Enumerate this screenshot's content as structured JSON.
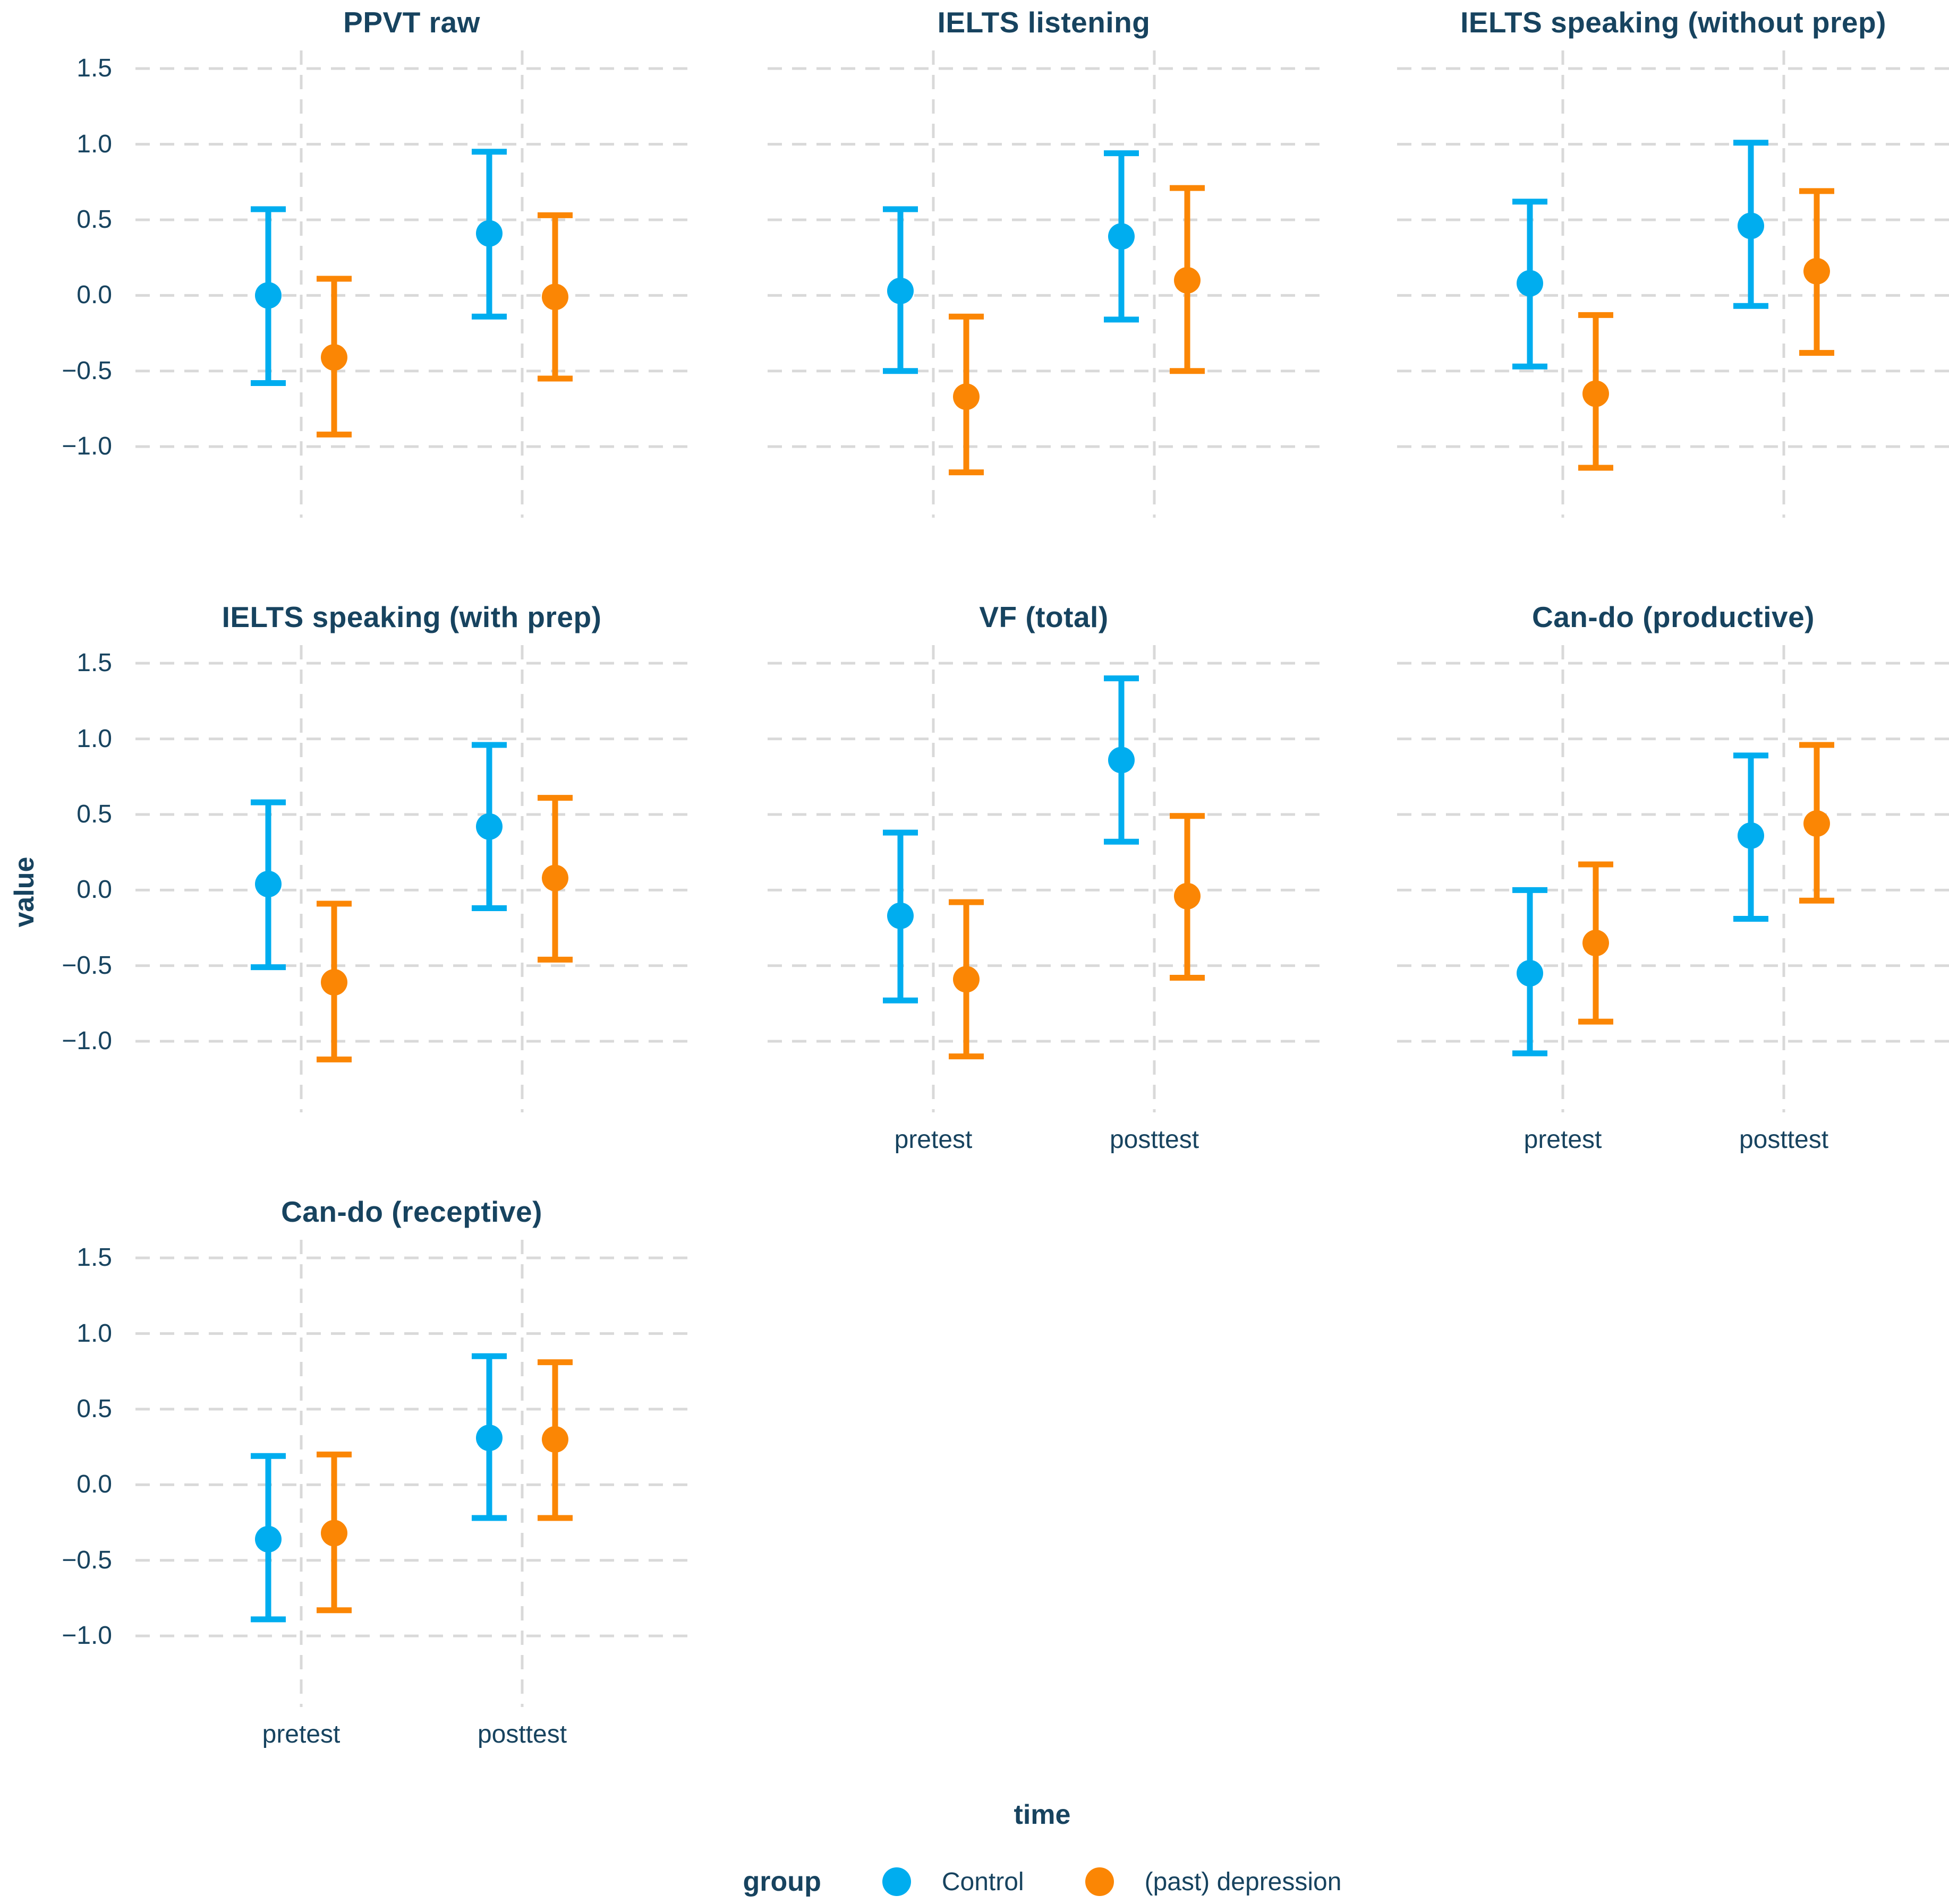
{
  "chart_data": {
    "type": "pointrange",
    "xlabel": "time",
    "ylabel": "value",
    "x_categories": [
      "pretest",
      "posttest"
    ],
    "y_ticks": [
      1.5,
      1.0,
      0.5,
      0.0,
      -0.5,
      -1.0
    ],
    "y_tick_labels": [
      "1.5",
      "1.0",
      "0.5",
      "0.0",
      "−0.5",
      "−1.0"
    ],
    "ylim": [
      -1.47,
      1.62
    ],
    "grid": "dashed-horizontal-and-vertical",
    "background": "#ffffff",
    "text_color": "#17435f",
    "gridline_color": "#d9d9d9",
    "legend": {
      "title": "group",
      "position": "bottom",
      "items": [
        {
          "label": "Control",
          "color": "#00ADEF"
        },
        {
          "label": "(past) depression",
          "color": "#FB8604"
        }
      ]
    },
    "facets": [
      {
        "title": "PPVT raw",
        "row": 1,
        "col": 1,
        "show_x_labels": false,
        "series": [
          {
            "group": "Control",
            "points": [
              {
                "x": "pretest",
                "mean": 0.0,
                "lower": -0.58,
                "upper": 0.57
              },
              {
                "x": "posttest",
                "mean": 0.41,
                "lower": -0.14,
                "upper": 0.95
              }
            ]
          },
          {
            "group": "(past) depression",
            "points": [
              {
                "x": "pretest",
                "mean": -0.41,
                "lower": -0.92,
                "upper": 0.11
              },
              {
                "x": "posttest",
                "mean": -0.01,
                "lower": -0.55,
                "upper": 0.53
              }
            ]
          }
        ]
      },
      {
        "title": "IELTS listening",
        "row": 1,
        "col": 2,
        "show_x_labels": false,
        "series": [
          {
            "group": "Control",
            "points": [
              {
                "x": "pretest",
                "mean": 0.03,
                "lower": -0.5,
                "upper": 0.57
              },
              {
                "x": "posttest",
                "mean": 0.39,
                "lower": -0.16,
                "upper": 0.94
              }
            ]
          },
          {
            "group": "(past) depression",
            "points": [
              {
                "x": "pretest",
                "mean": -0.67,
                "lower": -1.17,
                "upper": -0.14
              },
              {
                "x": "posttest",
                "mean": 0.1,
                "lower": -0.5,
                "upper": 0.71
              }
            ]
          }
        ]
      },
      {
        "title": "IELTS speaking (without prep)",
        "row": 1,
        "col": 3,
        "show_x_labels": false,
        "series": [
          {
            "group": "Control",
            "points": [
              {
                "x": "pretest",
                "mean": 0.08,
                "lower": -0.47,
                "upper": 0.62
              },
              {
                "x": "posttest",
                "mean": 0.46,
                "lower": -0.07,
                "upper": 1.01
              }
            ]
          },
          {
            "group": "(past) depression",
            "points": [
              {
                "x": "pretest",
                "mean": -0.65,
                "lower": -1.14,
                "upper": -0.13
              },
              {
                "x": "posttest",
                "mean": 0.16,
                "lower": -0.38,
                "upper": 0.69
              }
            ]
          }
        ]
      },
      {
        "title": "IELTS speaking (with prep)",
        "row": 2,
        "col": 1,
        "show_x_labels": false,
        "series": [
          {
            "group": "Control",
            "points": [
              {
                "x": "pretest",
                "mean": 0.04,
                "lower": -0.51,
                "upper": 0.58
              },
              {
                "x": "posttest",
                "mean": 0.42,
                "lower": -0.12,
                "upper": 0.96
              }
            ]
          },
          {
            "group": "(past) depression",
            "points": [
              {
                "x": "pretest",
                "mean": -0.61,
                "lower": -1.12,
                "upper": -0.09
              },
              {
                "x": "posttest",
                "mean": 0.08,
                "lower": -0.46,
                "upper": 0.61
              }
            ]
          }
        ]
      },
      {
        "title": "VF (total)",
        "row": 2,
        "col": 2,
        "show_x_labels": true,
        "series": [
          {
            "group": "Control",
            "points": [
              {
                "x": "pretest",
                "mean": -0.17,
                "lower": -0.73,
                "upper": 0.38
              },
              {
                "x": "posttest",
                "mean": 0.86,
                "lower": 0.32,
                "upper": 1.4
              }
            ]
          },
          {
            "group": "(past) depression",
            "points": [
              {
                "x": "pretest",
                "mean": -0.59,
                "lower": -1.1,
                "upper": -0.08
              },
              {
                "x": "posttest",
                "mean": -0.04,
                "lower": -0.58,
                "upper": 0.49
              }
            ]
          }
        ]
      },
      {
        "title": "Can-do (productive)",
        "row": 2,
        "col": 3,
        "show_x_labels": true,
        "series": [
          {
            "group": "Control",
            "points": [
              {
                "x": "pretest",
                "mean": -0.55,
                "lower": -1.08,
                "upper": 0.0
              },
              {
                "x": "posttest",
                "mean": 0.36,
                "lower": -0.19,
                "upper": 0.89
              }
            ]
          },
          {
            "group": "(past) depression",
            "points": [
              {
                "x": "pretest",
                "mean": -0.35,
                "lower": -0.87,
                "upper": 0.17
              },
              {
                "x": "posttest",
                "mean": 0.44,
                "lower": -0.07,
                "upper": 0.96
              }
            ]
          }
        ]
      },
      {
        "title": "Can-do (receptive)",
        "row": 3,
        "col": 1,
        "show_x_labels": true,
        "series": [
          {
            "group": "Control",
            "points": [
              {
                "x": "pretest",
                "mean": -0.36,
                "lower": -0.89,
                "upper": 0.19
              },
              {
                "x": "posttest",
                "mean": 0.31,
                "lower": -0.22,
                "upper": 0.85
              }
            ]
          },
          {
            "group": "(past) depression",
            "points": [
              {
                "x": "pretest",
                "mean": -0.32,
                "lower": -0.83,
                "upper": 0.2
              },
              {
                "x": "posttest",
                "mean": 0.3,
                "lower": -0.22,
                "upper": 0.81
              }
            ]
          }
        ]
      }
    ]
  }
}
